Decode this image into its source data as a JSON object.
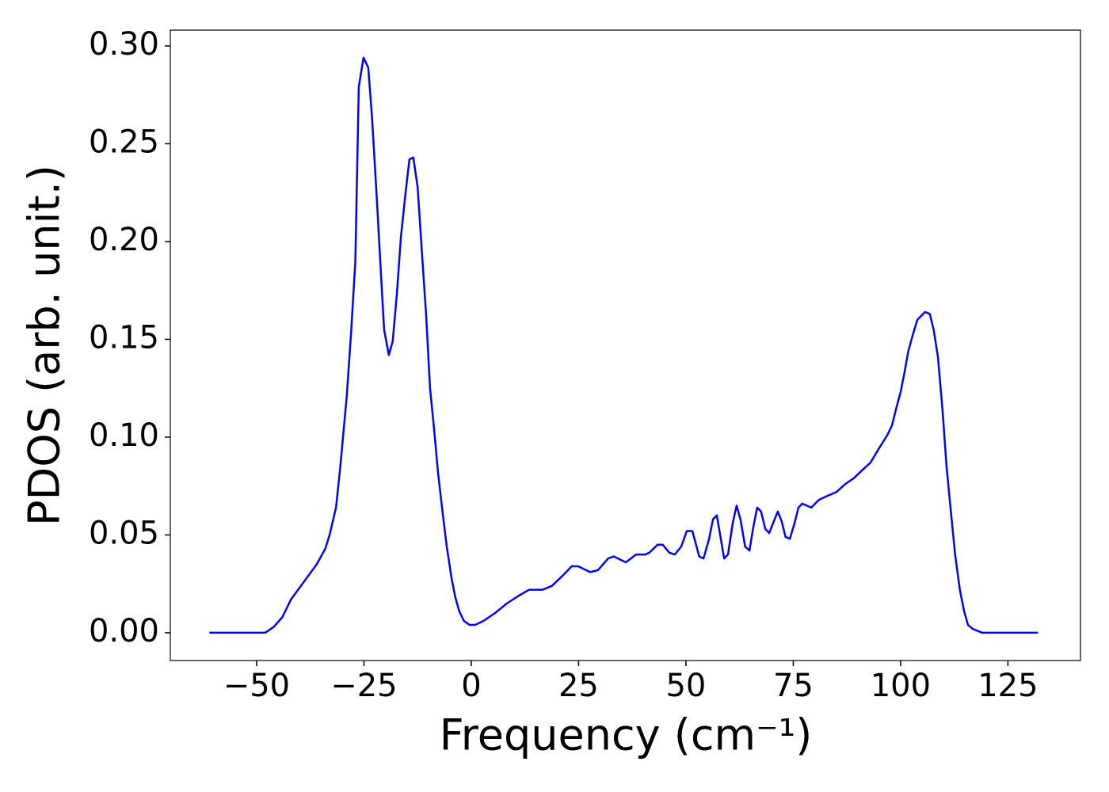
{
  "chart_data": {
    "type": "line",
    "x_label": "Frequency (cm⁻¹)",
    "y_label": "PDOS (arb. unit.)",
    "color": "#0000ff",
    "x": [
      -61,
      -48,
      -46,
      -44,
      -42,
      -40,
      -38,
      -36,
      -34,
      -33,
      -31.5,
      -30.5,
      -29,
      -28,
      -27,
      -26.2,
      -25.1,
      -24.0,
      -23.1,
      -22.0,
      -21.2,
      -20.3,
      -19.2,
      -18.3,
      -17.3,
      -16.4,
      -15.3,
      -14.4,
      -13.5,
      -12.5,
      -11.6,
      -10.5,
      -9.6,
      -8.7,
      -7.7,
      -6.6,
      -5.7,
      -4.6,
      -3.7,
      -2.8,
      -1.7,
      -0.4,
      0.9,
      2.8,
      5.5,
      8.3,
      11.1,
      13.5,
      16.6,
      18.8,
      21.2,
      23.4,
      24.9,
      27.7,
      29.5,
      31.9,
      33.2,
      36.0,
      38.4,
      40.6,
      41.5,
      43.4,
      44.6,
      46.1,
      47.4,
      48.9,
      50.2,
      51.5,
      53.1,
      54.1,
      55.4,
      56.3,
      57.2,
      58.9,
      59.8,
      60.9,
      61.8,
      62.7,
      63.8,
      64.8,
      65.7,
      66.6,
      67.5,
      68.5,
      69.4,
      70.3,
      71.4,
      72.3,
      73.2,
      74.2,
      75.3,
      76.2,
      77.1,
      79.2,
      81.0,
      83.0,
      85.1,
      87.1,
      89.1,
      91.0,
      93.0,
      94.9,
      96.9,
      98.0,
      98.9,
      100.0,
      100.9,
      101.8,
      102.8,
      103.9,
      104.8,
      105.7,
      106.8,
      107.7,
      108.7,
      109.8,
      110.7,
      111.8,
      112.7,
      113.8,
      114.8,
      115.7,
      116.8,
      119,
      132
    ],
    "values": [
      0,
      0,
      0.003,
      0.008,
      0.017,
      0.023,
      0.029,
      0.035,
      0.043,
      0.05,
      0.064,
      0.085,
      0.121,
      0.153,
      0.19,
      0.279,
      0.294,
      0.289,
      0.263,
      0.222,
      0.19,
      0.155,
      0.142,
      0.149,
      0.174,
      0.202,
      0.225,
      0.242,
      0.243,
      0.228,
      0.198,
      0.162,
      0.125,
      0.105,
      0.081,
      0.06,
      0.044,
      0.028,
      0.018,
      0.011,
      0.006,
      0.004,
      0.004,
      0.006,
      0.01,
      0.015,
      0.019,
      0.022,
      0.022,
      0.024,
      0.029,
      0.034,
      0.034,
      0.031,
      0.032,
      0.038,
      0.039,
      0.036,
      0.04,
      0.04,
      0.041,
      0.045,
      0.045,
      0.041,
      0.04,
      0.044,
      0.052,
      0.052,
      0.039,
      0.038,
      0.048,
      0.058,
      0.06,
      0.038,
      0.04,
      0.056,
      0.065,
      0.058,
      0.044,
      0.042,
      0.054,
      0.064,
      0.062,
      0.053,
      0.051,
      0.056,
      0.062,
      0.057,
      0.049,
      0.048,
      0.056,
      0.064,
      0.066,
      0.064,
      0.068,
      0.07,
      0.072,
      0.076,
      0.079,
      0.083,
      0.087,
      0.094,
      0.101,
      0.106,
      0.114,
      0.123,
      0.133,
      0.144,
      0.152,
      0.16,
      0.162,
      0.164,
      0.163,
      0.155,
      0.141,
      0.113,
      0.085,
      0.06,
      0.04,
      0.022,
      0.011,
      0.004,
      0.002,
      0,
      0
    ],
    "xlim": [
      -70.1,
      141.9
    ],
    "ylim": [
      -0.0142,
      0.3081
    ],
    "xticks": [
      {
        "value": -50,
        "label": "−50"
      },
      {
        "value": -25,
        "label": "−25"
      },
      0,
      25,
      50,
      75,
      100,
      125
    ],
    "yticks": [
      {
        "value": 0,
        "label": "0.00"
      },
      {
        "value": 0.05,
        "label": "0.05"
      },
      {
        "value": 0.1,
        "label": "0.10"
      },
      {
        "value": 0.15,
        "label": "0.15"
      },
      {
        "value": 0.2,
        "label": "0.20"
      },
      {
        "value": 0.25,
        "label": "0.25"
      },
      {
        "value": 0.3,
        "label": "0.30"
      }
    ],
    "grid": false
  }
}
